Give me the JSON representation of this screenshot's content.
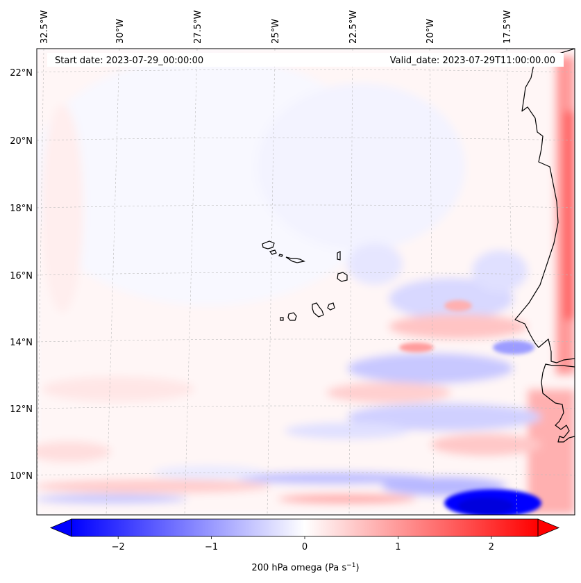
{
  "map": {
    "start_date": "Start date: 2023-07-29_00:00:00",
    "valid_date": "Valid_date: 2023-07-29T11:00:00.00",
    "longitude_labels": [
      "32.5°W",
      "30°W",
      "27.5°W",
      "25°W",
      "22.5°W",
      "20°W",
      "17.5°W"
    ],
    "latitude_labels": [
      "22°N",
      "20°N",
      "18°N",
      "16°N",
      "14°N",
      "12°N",
      "10°N"
    ],
    "field_colors": {
      "positive": "#ff0000",
      "negative": "#0000ff",
      "neutral": "#ffffff",
      "coastline": "#000000",
      "gridline": "#bbbbbb"
    }
  },
  "colorbar": {
    "ticks": [
      {
        "value": -2,
        "label": "−2"
      },
      {
        "value": -1,
        "label": "−1"
      },
      {
        "value": 0,
        "label": "0"
      },
      {
        "value": 1,
        "label": "1"
      },
      {
        "value": 2,
        "label": "2"
      }
    ],
    "range": [
      -2.5,
      2.5
    ],
    "extend": "both",
    "label": "200 hPa omega (Pa s",
    "label_sup": "−1",
    "label_end": ")"
  }
}
